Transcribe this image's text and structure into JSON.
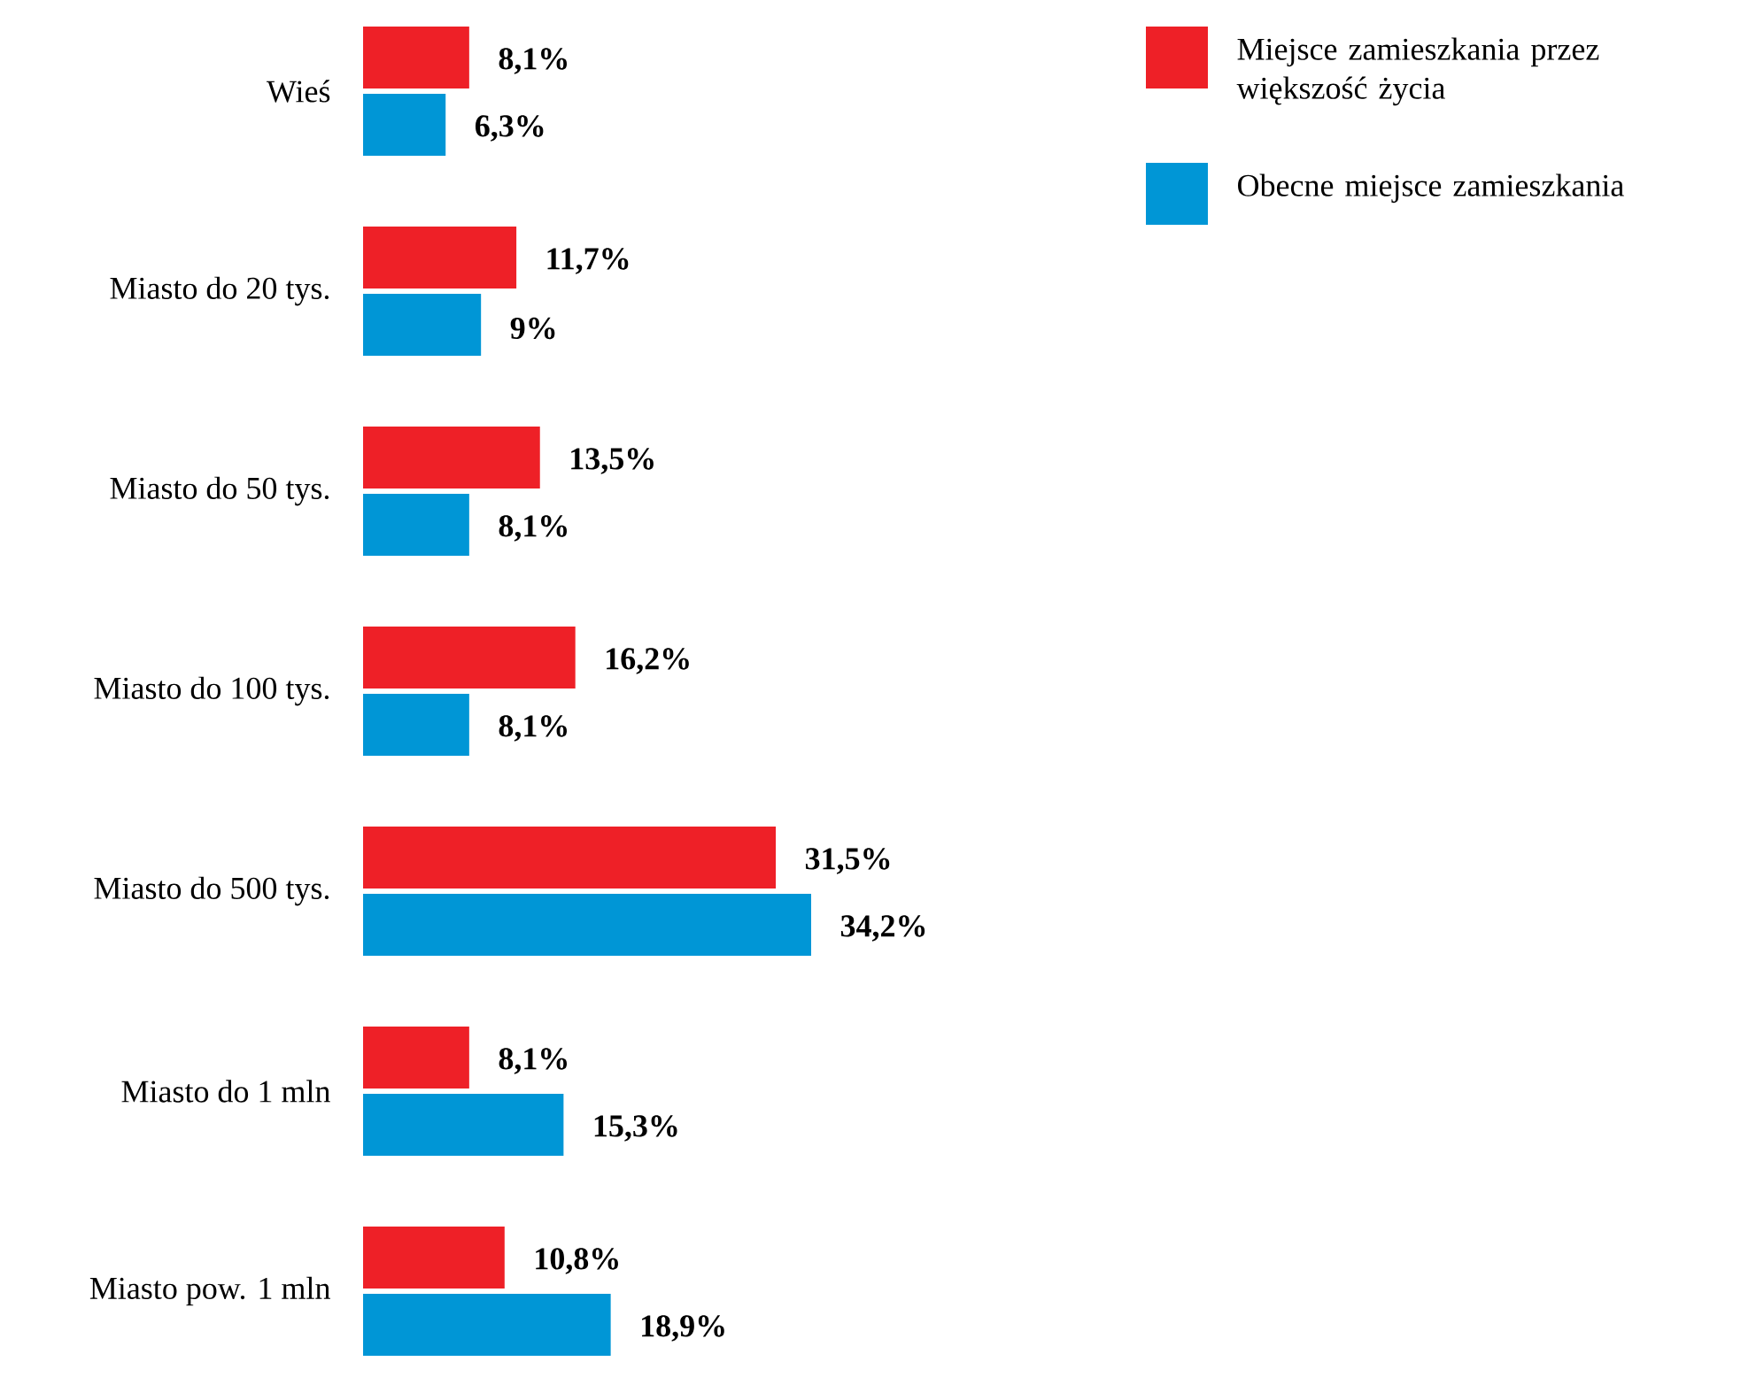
{
  "chart_data": {
    "type": "bar",
    "orientation": "horizontal",
    "categories": [
      "Wieś",
      "Miasto do 20 tys.",
      "Miasto do 50 tys.",
      "Miasto do 100 tys.",
      "Miasto do 500 tys.",
      "Miasto do 1 mln",
      "Miasto pow. 1 mln"
    ],
    "series": [
      {
        "name": "Miejsce zamieszkania przez większość życia",
        "color": "#ee2027",
        "values": [
          8.1,
          11.7,
          13.5,
          16.2,
          31.5,
          8.1,
          10.8
        ],
        "value_labels": [
          "8,1%",
          "11,7%",
          "13,5%",
          "16,2%",
          "31,5%",
          "8,1%",
          "10,8%"
        ]
      },
      {
        "name": "Obecne miejsce zamieszkania",
        "color": "#0096d6",
        "values": [
          6.3,
          9.0,
          8.1,
          8.1,
          34.2,
          15.3,
          18.9
        ],
        "value_labels": [
          "6,3%",
          "9%",
          "8,1%",
          "8,1%",
          "34,2%",
          "15,3%",
          "18,9%"
        ]
      }
    ],
    "legend": "top right"
  }
}
